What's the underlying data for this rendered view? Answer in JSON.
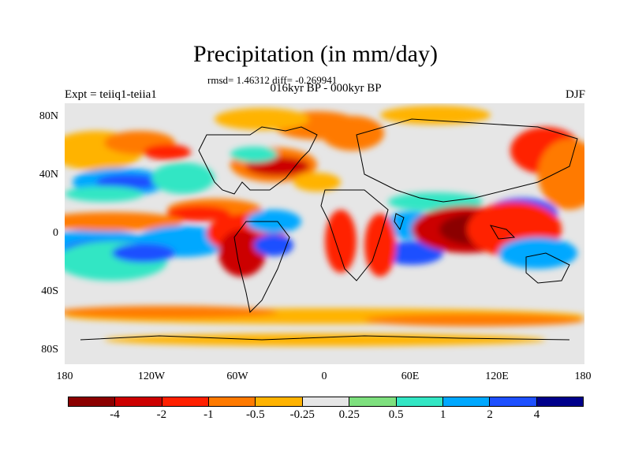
{
  "title": "Precipitation (in mm/day)",
  "stats": "rmsd= 1.46312 diff= -0.269941",
  "subtitle": "016kyr BP - 000kyr BP",
  "left_label": "Expt = teiiq1-teiia1",
  "right_label": "DJF",
  "lat_labels": [
    "80N",
    "40N",
    "0",
    "40S",
    "80S"
  ],
  "lon_labels": [
    "180",
    "120W",
    "60W",
    "0",
    "60E",
    "120E",
    "180"
  ],
  "colorbar": {
    "colors": [
      "#8b0000",
      "#cc0000",
      "#ff2000",
      "#ff7a00",
      "#ffb300",
      "#e6e6e6",
      "#7ee07e",
      "#33e6c4",
      "#00a8ff",
      "#1e50ff",
      "#00008b"
    ],
    "labels": [
      "-4",
      "-2",
      "-1",
      "-0.5",
      "-0.25",
      "0.25",
      "0.5",
      "1",
      "2",
      "4"
    ]
  },
  "colors": {
    "background_land_ocean": "#e6e6e6",
    "coastline": "#000000"
  }
}
